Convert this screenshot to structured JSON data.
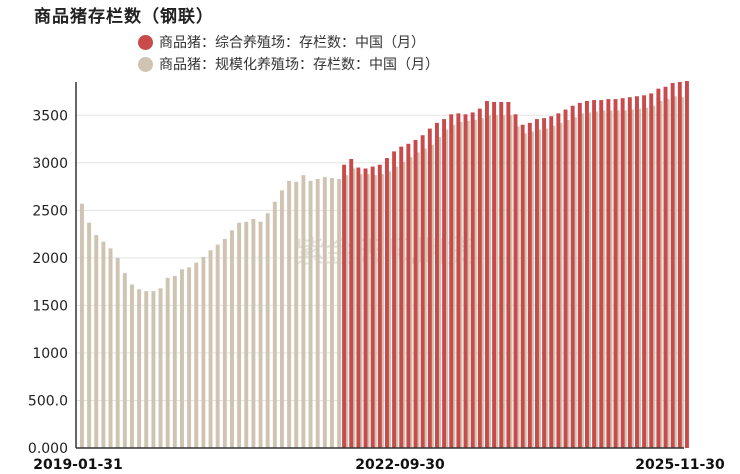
{
  "chart_data": {
    "type": "bar",
    "title": "商品猪存栏数（钢联）",
    "watermark": "紫金天风期货",
    "x_tick_labels": [
      "2019-01-31",
      "2022-09-30",
      "2025-11-30"
    ],
    "y_tick_labels": [
      "0.000",
      "500.0",
      "1000",
      "1500",
      "2000",
      "2500",
      "3000",
      "3500"
    ],
    "ylim": [
      0,
      3850
    ],
    "grid": "horizontal",
    "legend_position": "top-left",
    "series": [
      {
        "name": "商品猪：综合养殖场：存栏数：中国（月）",
        "color": "#c94a4a",
        "start_index": 37,
        "values": [
          2980,
          3040,
          2950,
          2940,
          2960,
          2980,
          3050,
          3120,
          3170,
          3200,
          3240,
          3290,
          3360,
          3420,
          3460,
          3510,
          3520,
          3510,
          3530,
          3570,
          3650,
          3640,
          3640,
          3640,
          3510,
          3400,
          3420,
          3460,
          3470,
          3490,
          3520,
          3560,
          3600,
          3630,
          3650,
          3660,
          3660,
          3670,
          3670,
          3680,
          3690,
          3700,
          3710,
          3730,
          3780,
          3800,
          3840,
          3850,
          3860
        ]
      },
      {
        "name": "商品猪：规模化养殖场：存栏数：中国（月）",
        "color": "#cfc4b2",
        "start_index": 0,
        "values": [
          2570,
          2370,
          2240,
          2170,
          2100,
          2000,
          1840,
          1720,
          1670,
          1650,
          1650,
          1680,
          1790,
          1810,
          1880,
          1900,
          1950,
          2010,
          2080,
          2140,
          2200,
          2290,
          2370,
          2380,
          2410,
          2380,
          2470,
          2590,
          2710,
          2810,
          2800,
          2870,
          2810,
          2830,
          2850,
          2840,
          2830,
          2870,
          2940,
          2880,
          2880,
          2870,
          2880,
          2910,
          2960,
          3010,
          3060,
          3110,
          3150,
          3190,
          3270,
          3350,
          3400,
          3430,
          3440,
          3450,
          3470,
          3500,
          3500,
          3500,
          3500,
          3380,
          3310,
          3330,
          3350,
          3360,
          3390,
          3420,
          3450,
          3480,
          3520,
          3530,
          3540,
          3550,
          3550,
          3550,
          3550,
          3560,
          3570,
          3580,
          3600,
          3650,
          3670,
          3700,
          3690
        ]
      }
    ]
  }
}
